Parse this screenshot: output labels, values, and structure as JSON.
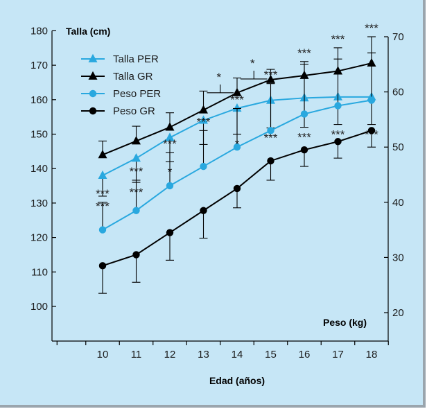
{
  "chart_data": {
    "type": "line",
    "x_title": "Edad (años)",
    "y_left_title": "Talla (cm)",
    "y_right_title": "Peso (kg)",
    "x": [
      10,
      11,
      12,
      13,
      14,
      15,
      16,
      17,
      18
    ],
    "ylim_left": [
      90,
      180
    ],
    "yticks_left": [
      100,
      110,
      120,
      130,
      140,
      150,
      160,
      170,
      180
    ],
    "ylim_right": [
      15,
      72
    ],
    "yticks_right": [
      20,
      30,
      40,
      50,
      60,
      70
    ],
    "colors": {
      "per": "#29a8df",
      "gr": "#000000",
      "axis": "#000000"
    },
    "series": [
      {
        "name": "Talla PER",
        "axis": "left",
        "marker": "triangle",
        "color": "#29a8df",
        "values": [
          138,
          143,
          149,
          154,
          157.5,
          159.8,
          160.5,
          160.8,
          160.8
        ],
        "err": [
          6,
          7,
          7,
          7,
          7.5,
          8,
          8.5,
          8,
          8
        ],
        "err_dir": "down",
        "sig": [
          "***",
          "***",
          "*",
          "",
          "*",
          "***",
          "***",
          "***",
          "***"
        ]
      },
      {
        "name": "Talla GR",
        "axis": "left",
        "marker": "triangle",
        "color": "#000000",
        "values": [
          144,
          148,
          152,
          157,
          162,
          165.8,
          167,
          168.3,
          170.6
        ],
        "err": [
          4,
          4.3,
          4.2,
          5.5,
          4.3,
          3,
          3.3,
          3.5,
          3
        ],
        "err_dir": "up",
        "sig": [
          "",
          "",
          "",
          "",
          "",
          "",
          "",
          "",
          ""
        ]
      },
      {
        "name": "Peso PER",
        "axis": "right",
        "marker": "circle",
        "color": "#29a8df",
        "values": [
          35,
          38.5,
          43,
          46.5,
          50,
          53,
          56,
          57.5,
          58.5
        ],
        "err": [
          5,
          5.5,
          6,
          6.5,
          7,
          8.5,
          9.5,
          10.5,
          11.5
        ],
        "err_dir": "up",
        "sig": [
          "***",
          "***",
          "***",
          "***",
          "***",
          "***",
          "***",
          "***",
          "***"
        ]
      },
      {
        "name": "Peso GR",
        "axis": "right",
        "marker": "circle",
        "color": "#000000",
        "values": [
          28.5,
          30.5,
          34.5,
          38.5,
          42.5,
          47.5,
          49.5,
          51,
          53
        ],
        "err": [
          5,
          5,
          5,
          5,
          3.5,
          3.5,
          3,
          3,
          3
        ],
        "err_dir": "down",
        "sig": [
          "",
          "",
          "",
          "",
          "",
          "",
          "",
          "",
          ""
        ]
      }
    ],
    "brackets": [
      {
        "x1": 13,
        "x2": 14,
        "y": 162,
        "label": "*"
      },
      {
        "x1": 14,
        "x2": 15,
        "y": 166,
        "label": "*"
      }
    ],
    "legend": {
      "position": "top-left"
    },
    "grid": false
  }
}
